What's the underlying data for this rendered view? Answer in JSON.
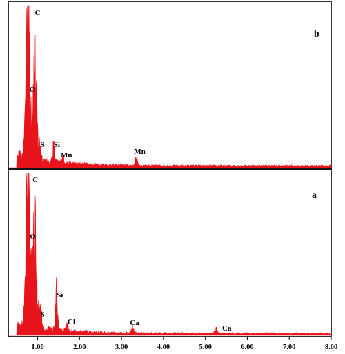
{
  "chart_data": [
    {
      "type": "area",
      "panel": "b",
      "xlim": [
        0.3,
        8.0
      ],
      "ylim": [
        0,
        100
      ],
      "color": "#e8141b",
      "peaks": [
        {
          "element": "C",
          "x": 0.77,
          "y": 100
        },
        {
          "element": "O",
          "x": 0.93,
          "y": 57
        },
        {
          "element": "S",
          "x": 1.06,
          "y": 10
        },
        {
          "element": "Si",
          "x": 1.38,
          "y": 9
        },
        {
          "element": "Mn",
          "x": 1.6,
          "y": 4
        },
        {
          "element": "Mn",
          "x": 3.36,
          "y": 5
        }
      ],
      "labels": [
        {
          "text": "C",
          "x": 0.77
        },
        {
          "text": "O",
          "x": 0.77
        },
        {
          "text": "S",
          "x": 1.0
        },
        {
          "text": "Si",
          "x": 1.35
        },
        {
          "text": "Mn",
          "x": 1.55
        },
        {
          "text": "Mn",
          "x": 3.3
        }
      ]
    },
    {
      "type": "area",
      "panel": "a",
      "xlim": [
        0.3,
        8.0
      ],
      "ylim": [
        0,
        100
      ],
      "color": "#e8141b",
      "xticks": [
        1.0,
        2.0,
        3.0,
        4.0,
        5.0,
        6.0,
        7.0,
        8.0
      ],
      "xtick_labels": [
        "1.00",
        "2.00",
        "3.00",
        "4.00",
        "5.00",
        "6.00",
        "7.00",
        "8.00"
      ],
      "peaks": [
        {
          "element": "C",
          "x": 0.77,
          "y": 100
        },
        {
          "element": "O",
          "x": 0.93,
          "y": 57
        },
        {
          "element": "S",
          "x": 1.07,
          "y": 11
        },
        {
          "element": "Si",
          "x": 1.45,
          "y": 22
        },
        {
          "element": "Cl",
          "x": 1.7,
          "y": 4
        },
        {
          "element": "Ca",
          "x": 3.26,
          "y": 4
        },
        {
          "element": "Ca",
          "x": 5.25,
          "y": 3
        }
      ],
      "labels": [
        {
          "text": "C",
          "x": 0.78
        },
        {
          "text": "O",
          "x": 0.78
        },
        {
          "text": "S",
          "x": 1.0
        },
        {
          "text": "Si",
          "x": 1.42
        },
        {
          "text": "Cl",
          "x": 1.68
        },
        {
          "text": "Ca",
          "x": 3.2
        },
        {
          "text": "Ca",
          "x": 5.4
        }
      ]
    }
  ],
  "panels": {
    "b": {
      "tag": "b"
    },
    "a": {
      "tag": "a"
    }
  }
}
